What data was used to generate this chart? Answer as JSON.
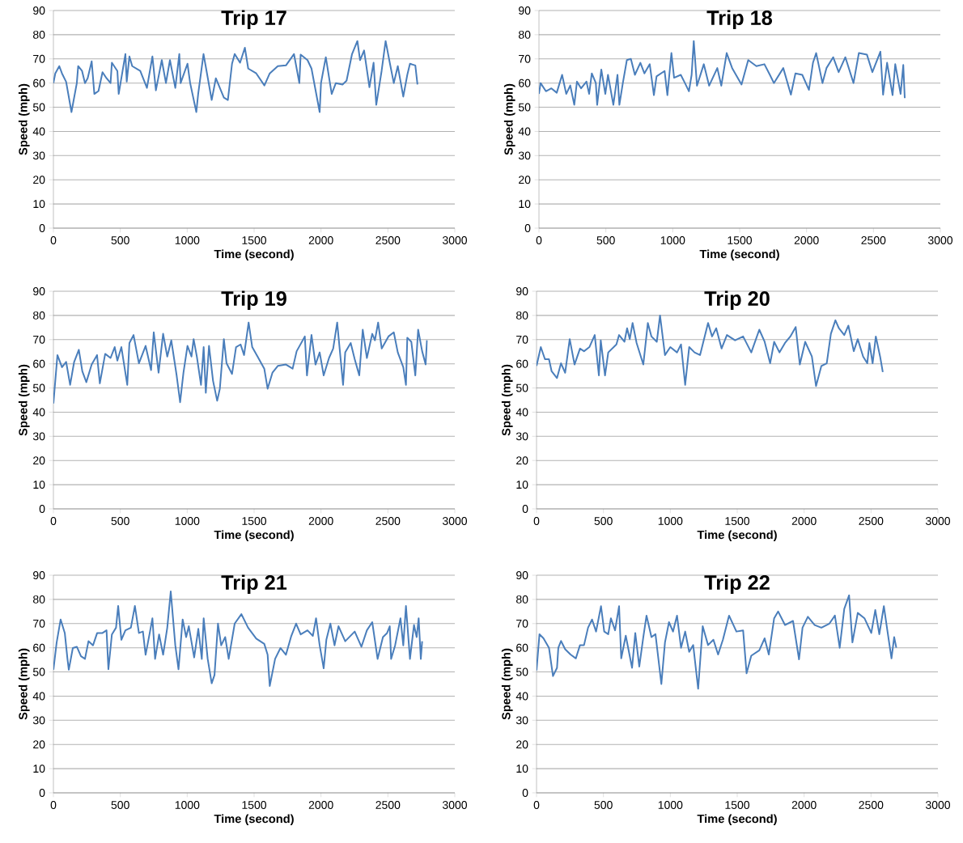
{
  "chart_data": [
    {
      "type": "line",
      "title": "Trip 17",
      "xlabel": "Time (second)",
      "ylabel": "Speed (mph)",
      "color": "#4a7ebb",
      "grid": "y",
      "xlim": [
        0,
        3000
      ],
      "ylim": [
        0,
        90
      ],
      "xticks": [
        0,
        500,
        1000,
        1500,
        2000,
        2500,
        3000
      ],
      "yticks": [
        0,
        10,
        20,
        30,
        40,
        50,
        60,
        70,
        80,
        90
      ],
      "x": [
        0,
        14,
        44,
        64,
        95,
        135,
        175,
        185,
        214,
        236,
        256,
        286,
        306,
        337,
        367,
        397,
        427,
        437,
        478,
        488,
        538,
        548,
        568,
        589,
        649,
        699,
        740,
        766,
        810,
        841,
        871,
        911,
        941,
        951,
        1002,
        1022,
        1068,
        1082,
        1122,
        1183,
        1214,
        1274,
        1304,
        1335,
        1355,
        1395,
        1431,
        1456,
        1516,
        1577,
        1617,
        1677,
        1738,
        1798,
        1838,
        1848,
        1899,
        1929,
        1990,
        2000,
        2036,
        2080,
        2111,
        2161,
        2191,
        2232,
        2272,
        2292,
        2322,
        2362,
        2393,
        2413,
        2453,
        2483,
        2514,
        2544,
        2574,
        2615,
        2645,
        2665,
        2705,
        2721
      ],
      "values": [
        60,
        64,
        67,
        64,
        60.5,
        48,
        60,
        67,
        65,
        60,
        62,
        69,
        55.5,
        56.7,
        64.5,
        62,
        60,
        68.4,
        65,
        55.5,
        72,
        60.6,
        71,
        67,
        65,
        58,
        71,
        57,
        69.5,
        60,
        69.5,
        58,
        72,
        60,
        68,
        60,
        48,
        55.5,
        72,
        53,
        62,
        54,
        53,
        68,
        72,
        68.4,
        74.6,
        66,
        64,
        59,
        64,
        67,
        67.3,
        72,
        60,
        71.8,
        69.5,
        66,
        48,
        60,
        70.7,
        55.5,
        60,
        59.4,
        61,
        72,
        77.4,
        69.5,
        73.5,
        58.3,
        68.4,
        51,
        65,
        77.4,
        68.4,
        60,
        67,
        54.4,
        63.4,
        68,
        67.3,
        59.4
      ]
    },
    {
      "type": "line",
      "title": "Trip 18",
      "xlabel": "Time (second)",
      "ylabel": "Speed (mph)",
      "color": "#4a7ebb",
      "grid": "y",
      "xlim": [
        0,
        3000
      ],
      "ylim": [
        0,
        90
      ],
      "xticks": [
        0,
        500,
        1000,
        1500,
        2000,
        2500,
        3000
      ],
      "yticks": [
        0,
        10,
        20,
        30,
        40,
        50,
        60,
        70,
        80,
        90
      ],
      "x": [
        0,
        12,
        52,
        93,
        133,
        173,
        204,
        234,
        264,
        284,
        315,
        355,
        375,
        395,
        425,
        435,
        466,
        496,
        516,
        556,
        587,
        601,
        627,
        657,
        687,
        717,
        758,
        788,
        828,
        859,
        879,
        939,
        960,
        990,
        1010,
        1060,
        1091,
        1121,
        1141,
        1157,
        1181,
        1232,
        1272,
        1333,
        1363,
        1403,
        1444,
        1514,
        1564,
        1625,
        1685,
        1726,
        1756,
        1826,
        1883,
        1917,
        1968,
        2018,
        2048,
        2072,
        2119,
        2149,
        2199,
        2240,
        2290,
        2351,
        2391,
        2451,
        2492,
        2552,
        2572,
        2602,
        2643,
        2663,
        2703,
        2723,
        2734
      ],
      "values": [
        55.5,
        60,
        56.6,
        57.8,
        56,
        63.4,
        55.5,
        59,
        51,
        60.6,
        57.8,
        60.6,
        55.5,
        64,
        60,
        51,
        65.6,
        55.5,
        63.4,
        51,
        63.4,
        51,
        60,
        69.5,
        70,
        63.4,
        68.4,
        64,
        67.8,
        55,
        62.8,
        65,
        55,
        72.4,
        62.2,
        63.4,
        60,
        56.6,
        63.4,
        77.4,
        58.9,
        67.8,
        58.9,
        66.2,
        58.9,
        72.4,
        66.2,
        59.4,
        69.5,
        67,
        67.8,
        63.4,
        60,
        66.2,
        55.2,
        64,
        63.4,
        57.2,
        68.4,
        72.4,
        60,
        66.2,
        70.7,
        64.5,
        70.7,
        60,
        72.4,
        71.8,
        64.5,
        73,
        55.2,
        68.4,
        55,
        67.8,
        55.5,
        67.5,
        53.8
      ]
    },
    {
      "type": "line",
      "title": "Trip 19",
      "xlabel": "Time (second)",
      "ylabel": "Speed (mph)",
      "color": "#4a7ebb",
      "grid": "y",
      "xlim": [
        0,
        3000
      ],
      "ylim": [
        0,
        90
      ],
      "xticks": [
        0,
        500,
        1000,
        1500,
        2000,
        2500,
        3000
      ],
      "yticks": [
        0,
        10,
        20,
        30,
        40,
        50,
        60,
        70,
        80,
        90
      ],
      "x": [
        0,
        30,
        64,
        95,
        125,
        155,
        190,
        216,
        246,
        286,
        326,
        347,
        387,
        427,
        458,
        478,
        508,
        552,
        568,
        599,
        639,
        689,
        730,
        750,
        786,
        820,
        851,
        881,
        921,
        947,
        972,
        1002,
        1032,
        1048,
        1072,
        1103,
        1123,
        1139,
        1163,
        1193,
        1224,
        1244,
        1274,
        1294,
        1335,
        1365,
        1399,
        1425,
        1459,
        1486,
        1526,
        1576,
        1601,
        1637,
        1677,
        1738,
        1788,
        1818,
        1879,
        1895,
        1929,
        1959,
        1990,
        2020,
        2060,
        2091,
        2121,
        2165,
        2181,
        2222,
        2252,
        2286,
        2312,
        2343,
        2383,
        2403,
        2427,
        2454,
        2504,
        2544,
        2574,
        2615,
        2635,
        2645,
        2675,
        2705,
        2726,
        2756,
        2782,
        2792
      ],
      "values": [
        43.6,
        63.6,
        58.6,
        60.8,
        51.3,
        60.8,
        65.8,
        56.9,
        52.4,
        59.7,
        63.6,
        51.9,
        64.1,
        62.4,
        66.9,
        61.3,
        66.9,
        51.3,
        68.6,
        71.9,
        60.2,
        67.4,
        57.4,
        73,
        56.3,
        72.4,
        63,
        69.7,
        55.2,
        44.1,
        56.3,
        67.4,
        63,
        70.2,
        63,
        51.3,
        66.9,
        48,
        67.4,
        53,
        44.7,
        49.7,
        70.2,
        60.2,
        55.8,
        66.9,
        68,
        63.6,
        77.1,
        66.9,
        63,
        58,
        49.7,
        56.3,
        59.1,
        59.7,
        58,
        65.2,
        71.3,
        55.2,
        71.9,
        59.7,
        64.7,
        55.2,
        62.4,
        66.3,
        77.1,
        51.3,
        64.7,
        68.6,
        61.9,
        55.2,
        74.1,
        62.4,
        72.4,
        69.7,
        77.1,
        66.3,
        71.3,
        73,
        64.7,
        58.6,
        51.3,
        70.8,
        69.1,
        55.2,
        74.1,
        65.2,
        59.7,
        69.7
      ]
    },
    {
      "type": "line",
      "title": "Trip 20",
      "xlabel": "Time (second)",
      "ylabel": "Speed (mph)",
      "color": "#4a7ebb",
      "grid": "y",
      "xlim": [
        0,
        3000
      ],
      "ylim": [
        0,
        90
      ],
      "xticks": [
        0,
        500,
        1000,
        1500,
        2000,
        2500,
        3000
      ],
      "yticks": [
        0,
        10,
        20,
        30,
        40,
        50,
        60,
        70,
        80,
        90
      ],
      "x": [
        0,
        32,
        63,
        93,
        113,
        153,
        183,
        214,
        248,
        284,
        325,
        355,
        395,
        435,
        466,
        480,
        512,
        536,
        597,
        617,
        657,
        677,
        697,
        718,
        748,
        798,
        832,
        859,
        899,
        923,
        960,
        1000,
        1050,
        1080,
        1111,
        1141,
        1181,
        1222,
        1282,
        1312,
        1343,
        1383,
        1423,
        1484,
        1544,
        1605,
        1665,
        1705,
        1746,
        1776,
        1816,
        1857,
        1897,
        1937,
        1968,
        2008,
        2058,
        2089,
        2129,
        2169,
        2200,
        2234,
        2260,
        2300,
        2331,
        2371,
        2401,
        2441,
        2472,
        2488,
        2512,
        2536,
        2568,
        2588
      ],
      "values": [
        59.1,
        66.9,
        61.9,
        61.9,
        56.9,
        54.1,
        60.2,
        56.3,
        70.2,
        59.7,
        66.3,
        65.2,
        66.9,
        71.9,
        55.2,
        69.7,
        55.2,
        64.7,
        68,
        71.9,
        69.1,
        74.7,
        70.2,
        76.9,
        68.6,
        59.7,
        76.9,
        71.3,
        69.1,
        80,
        63.6,
        66.9,
        64.7,
        68,
        51.3,
        66.9,
        64.7,
        63.6,
        76.9,
        71.3,
        74.7,
        66.3,
        71.9,
        69.7,
        71.3,
        64.7,
        74.1,
        69.1,
        60.2,
        69.1,
        64.7,
        68.6,
        71.3,
        75.2,
        59.7,
        69.1,
        63,
        50.8,
        59.1,
        60.2,
        72.4,
        78,
        74.7,
        71.9,
        75.8,
        65.2,
        70.2,
        63,
        60.2,
        68.6,
        60.2,
        71.3,
        63,
        56.6
      ]
    },
    {
      "type": "line",
      "title": "Trip 21",
      "xlabel": "Time (second)",
      "ylabel": "Speed (mph)",
      "color": "#4a7ebb",
      "grid": "y",
      "xlim": [
        0,
        3000
      ],
      "ylim": [
        0,
        90
      ],
      "xticks": [
        0,
        500,
        1000,
        1500,
        2000,
        2500,
        3000
      ],
      "yticks": [
        0,
        10,
        20,
        30,
        40,
        50,
        60,
        70,
        80,
        90
      ],
      "x": [
        0,
        24,
        54,
        85,
        105,
        115,
        145,
        175,
        206,
        236,
        262,
        296,
        327,
        367,
        397,
        411,
        437,
        468,
        484,
        508,
        538,
        579,
        609,
        639,
        669,
        689,
        720,
        740,
        760,
        790,
        820,
        851,
        877,
        911,
        935,
        966,
        992,
        1012,
        1052,
        1083,
        1109,
        1123,
        1153,
        1183,
        1204,
        1230,
        1254,
        1284,
        1310,
        1355,
        1405,
        1455,
        1516,
        1576,
        1601,
        1617,
        1657,
        1697,
        1738,
        1778,
        1814,
        1848,
        1899,
        1939,
        1963,
        1990,
        2020,
        2040,
        2070,
        2101,
        2131,
        2181,
        2252,
        2302,
        2343,
        2383,
        2423,
        2463,
        2494,
        2514,
        2524,
        2554,
        2594,
        2615,
        2635,
        2665,
        2695,
        2715,
        2730,
        2746,
        2756
      ],
      "values": [
        50.9,
        62.1,
        71.7,
        66.1,
        55.4,
        50.9,
        59.9,
        60.4,
        56.5,
        55.4,
        62.7,
        61,
        66.1,
        66.1,
        67.2,
        51.1,
        65.5,
        68.3,
        77.3,
        63.3,
        67.2,
        68.3,
        77.3,
        66.1,
        66.7,
        57.1,
        66.1,
        72.2,
        55.4,
        65.5,
        57.1,
        68.3,
        83.3,
        61,
        51.1,
        71.7,
        64.4,
        68.9,
        56,
        67.8,
        55.4,
        72.2,
        55.4,
        45.3,
        48.7,
        70,
        61,
        64.4,
        55.4,
        70,
        73.9,
        68.3,
        63.8,
        61.6,
        57.1,
        44.2,
        55.4,
        59.9,
        57.1,
        64.9,
        70,
        65.5,
        67.2,
        64.9,
        72.2,
        61,
        51.5,
        63.3,
        70,
        61,
        68.9,
        62.7,
        66.7,
        60.4,
        67.2,
        70.6,
        55.4,
        64.4,
        66.1,
        68.9,
        55.4,
        61,
        72.2,
        61,
        77.3,
        55.4,
        69.4,
        64.4,
        72.2,
        55.4,
        62.7
      ]
    },
    {
      "type": "line",
      "title": "Trip 22",
      "xlabel": "Time (second)",
      "ylabel": "Speed (mph)",
      "color": "#4a7ebb",
      "grid": "y",
      "xlim": [
        0,
        3000
      ],
      "ylim": [
        0,
        90
      ],
      "xticks": [
        0,
        500,
        1000,
        1500,
        2000,
        2500,
        3000
      ],
      "yticks": [
        0,
        10,
        20,
        30,
        40,
        50,
        60,
        70,
        80,
        90
      ],
      "x": [
        0,
        22,
        52,
        93,
        123,
        153,
        163,
        183,
        214,
        254,
        294,
        325,
        355,
        385,
        415,
        445,
        482,
        506,
        536,
        556,
        587,
        617,
        633,
        667,
        714,
        738,
        768,
        798,
        822,
        859,
        889,
        933,
        960,
        990,
        1020,
        1050,
        1080,
        1111,
        1141,
        1171,
        1208,
        1242,
        1282,
        1322,
        1357,
        1393,
        1439,
        1494,
        1544,
        1570,
        1605,
        1665,
        1705,
        1736,
        1776,
        1806,
        1857,
        1917,
        1962,
        1988,
        2028,
        2079,
        2129,
        2189,
        2230,
        2266,
        2300,
        2336,
        2361,
        2401,
        2451,
        2502,
        2532,
        2562,
        2596,
        2622,
        2653,
        2673,
        2689
      ],
      "values": [
        50.6,
        65.6,
        63.9,
        60,
        48.3,
        51.7,
        60,
        62.8,
        59.4,
        57.2,
        55.6,
        61.1,
        61.1,
        68.3,
        71.7,
        66.7,
        77.2,
        66.7,
        65.6,
        72.2,
        67.2,
        77.2,
        55.6,
        65,
        51.7,
        66.1,
        52.2,
        64.4,
        73.3,
        64.4,
        65.6,
        45,
        62.2,
        70.6,
        66.7,
        73.3,
        60,
        66.7,
        58.3,
        61.1,
        43,
        68.9,
        61.1,
        63.3,
        57.2,
        63.3,
        73.3,
        66.7,
        67.2,
        49.4,
        56.7,
        58.9,
        63.9,
        57.2,
        72.2,
        75,
        69.4,
        71.1,
        55.2,
        68.3,
        72.8,
        69.4,
        68.3,
        70,
        73.3,
        60,
        76.1,
        81.7,
        62.2,
        74.4,
        72.2,
        66.1,
        75.6,
        65.6,
        77.2,
        67.2,
        55.6,
        64.4,
        60
      ]
    }
  ]
}
